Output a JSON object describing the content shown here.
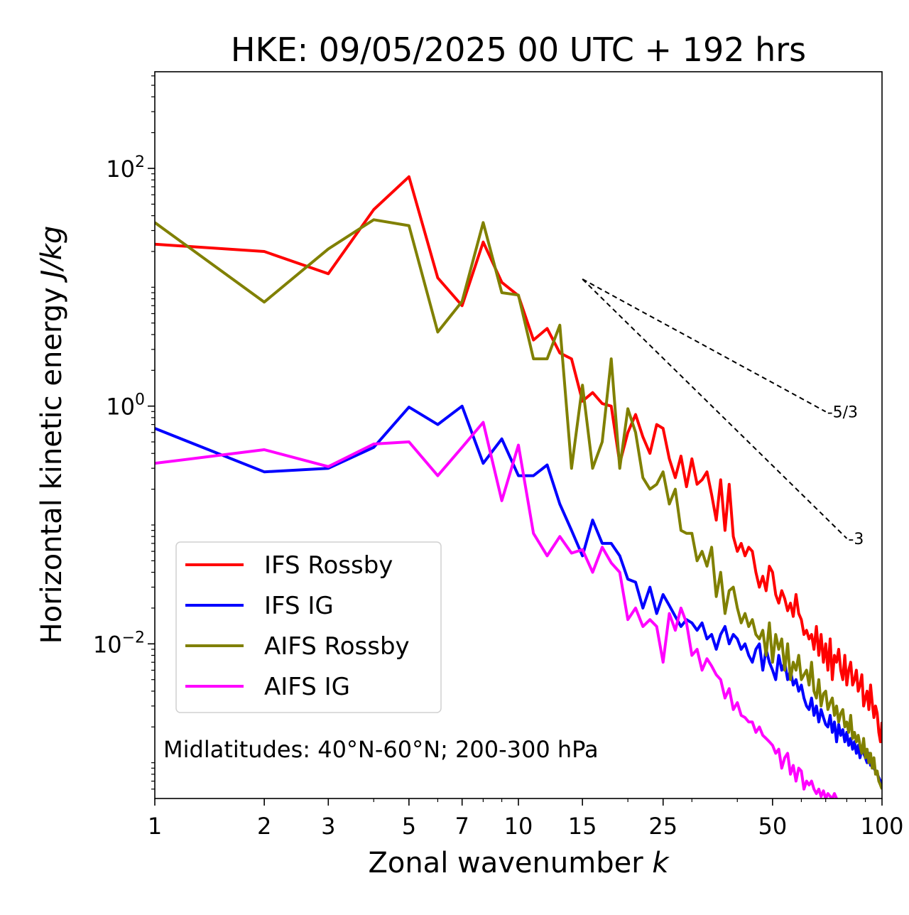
{
  "chart_data": {
    "type": "line",
    "title": "HKE: 09/05/2025 00 UTC + 192 hrs",
    "xlabel": "Zonal wavenumber k",
    "xlabel_main": "Zonal wavenumber ",
    "xlabel_var": "k",
    "ylabel": "Horizontal kinetic energy J/kg",
    "ylabel_main": "Horizontal kinetic energy ",
    "ylabel_unit": "J/kg",
    "xscale": "log",
    "yscale": "log",
    "xlim": [
      1,
      100
    ],
    "ylim": [
      0.0005,
      650
    ],
    "x_ticks": [
      1,
      2,
      3,
      5,
      7,
      10,
      15,
      25,
      50,
      100
    ],
    "x_tick_labels": [
      "1",
      "2",
      "3",
      "5",
      "7",
      "10",
      "15",
      "25",
      "50",
      "100"
    ],
    "y_ticks": [
      {
        "value": 100,
        "base": "10",
        "exp": "2"
      },
      {
        "value": 1,
        "base": "10",
        "exp": "0"
      },
      {
        "value": 0.01,
        "base": "10",
        "exp": "−2"
      }
    ],
    "annotation": "Midlatitudes: 40°N-60°N; 200-300 hPa",
    "legend_position": "lower-left",
    "reference_lines": [
      {
        "label": "-5/3",
        "slope": -1.6667,
        "x0": 15,
        "y0": 11.7,
        "x1": 70
      },
      {
        "label": "-3",
        "slope": -3,
        "x0": 15,
        "y0": 11.7,
        "x1": 80
      }
    ],
    "series": [
      {
        "name": "IFS Rossby",
        "color": "#ff0000",
        "x": [
          1,
          2,
          3,
          4,
          5,
          6,
          7,
          8,
          9,
          10,
          11,
          12,
          13,
          14,
          15,
          16,
          17,
          18,
          19,
          20,
          21,
          22,
          23,
          24,
          25,
          26,
          27,
          28,
          29,
          30,
          31,
          32,
          33,
          34,
          35,
          36,
          37,
          38,
          39,
          40,
          41,
          42,
          43,
          44,
          45,
          46,
          47,
          48,
          49,
          50,
          51,
          52,
          53,
          54,
          55,
          56,
          57,
          58,
          59,
          60,
          61,
          62,
          63,
          64,
          65,
          66,
          67,
          68,
          69,
          70,
          71,
          72,
          73,
          74,
          75,
          76,
          77,
          78,
          79,
          80,
          81,
          82,
          83,
          84,
          85,
          86,
          87,
          88,
          89,
          90,
          91,
          92,
          93,
          94,
          95,
          96,
          97,
          98,
          99,
          100
        ],
        "y": [
          23,
          20,
          13,
          45,
          85,
          12,
          7,
          24,
          11,
          8.5,
          3.6,
          4.5,
          2.8,
          2.5,
          1.1,
          1.3,
          1.05,
          1.0,
          0.33,
          0.6,
          0.85,
          0.55,
          0.4,
          0.7,
          0.65,
          0.36,
          0.25,
          0.38,
          0.21,
          0.36,
          0.22,
          0.24,
          0.28,
          0.18,
          0.11,
          0.24,
          0.09,
          0.22,
          0.08,
          0.06,
          0.07,
          0.055,
          0.065,
          0.06,
          0.04,
          0.03,
          0.037,
          0.028,
          0.045,
          0.04,
          0.026,
          0.022,
          0.028,
          0.024,
          0.019,
          0.022,
          0.017,
          0.026,
          0.018,
          0.016,
          0.012,
          0.013,
          0.011,
          0.012,
          0.009,
          0.014,
          0.008,
          0.012,
          0.007,
          0.01,
          0.006,
          0.011,
          0.005,
          0.008,
          0.007,
          0.009,
          0.006,
          0.005,
          0.008,
          0.0045,
          0.006,
          0.007,
          0.0045,
          0.005,
          0.006,
          0.004,
          0.0045,
          0.0055,
          0.003,
          0.0035,
          0.004,
          0.0028,
          0.0045,
          0.0032,
          0.0024,
          0.003,
          0.0026,
          0.0018,
          0.0015,
          0.0022
        ]
      },
      {
        "name": "IFS IG",
        "color": "#0000ff",
        "x": [
          1,
          2,
          3,
          4,
          5,
          6,
          7,
          8,
          9,
          10,
          11,
          12,
          13,
          14,
          15,
          16,
          17,
          18,
          19,
          20,
          21,
          22,
          23,
          24,
          25,
          26,
          27,
          28,
          29,
          30,
          31,
          32,
          33,
          34,
          35,
          36,
          37,
          38,
          39,
          40,
          41,
          42,
          43,
          44,
          45,
          46,
          47,
          48,
          49,
          50,
          51,
          52,
          53,
          54,
          55,
          56,
          57,
          58,
          59,
          60,
          61,
          62,
          63,
          64,
          65,
          66,
          67,
          68,
          69,
          70,
          71,
          72,
          73,
          74,
          75,
          76,
          77,
          78,
          79,
          80,
          81,
          82,
          83,
          84,
          85,
          86,
          87,
          88,
          89,
          90,
          91,
          92,
          93,
          94,
          95,
          96,
          97,
          98,
          99,
          100
        ],
        "y": [
          0.65,
          0.28,
          0.3,
          0.45,
          0.98,
          0.7,
          1.0,
          0.33,
          0.53,
          0.26,
          0.26,
          0.32,
          0.15,
          0.09,
          0.055,
          0.11,
          0.07,
          0.07,
          0.055,
          0.035,
          0.033,
          0.02,
          0.03,
          0.018,
          0.026,
          0.021,
          0.017,
          0.014,
          0.016,
          0.015,
          0.013,
          0.015,
          0.011,
          0.012,
          0.009,
          0.012,
          0.014,
          0.01,
          0.012,
          0.011,
          0.009,
          0.01,
          0.008,
          0.007,
          0.009,
          0.01,
          0.006,
          0.009,
          0.007,
          0.006,
          0.005,
          0.008,
          0.006,
          0.007,
          0.005,
          0.006,
          0.0045,
          0.005,
          0.004,
          0.0045,
          0.0035,
          0.003,
          0.0028,
          0.0035,
          0.0025,
          0.003,
          0.0022,
          0.0028,
          0.0024,
          0.0021,
          0.002,
          0.0025,
          0.0018,
          0.0022,
          0.0015,
          0.0021,
          0.0017,
          0.0019,
          0.0015,
          0.0018,
          0.0014,
          0.0016,
          0.0013,
          0.0015,
          0.0012,
          0.0014,
          0.0011,
          0.0013,
          0.0012,
          0.0011,
          0.001,
          0.0012,
          0.00095,
          0.001,
          0.0009,
          0.00085,
          0.0008,
          0.00075,
          0.0007,
          0.0006
        ]
      },
      {
        "name": "AIFS Rossby",
        "color": "#808000",
        "x": [
          1,
          2,
          3,
          4,
          5,
          6,
          7,
          8,
          9,
          10,
          11,
          12,
          13,
          14,
          15,
          16,
          17,
          18,
          19,
          20,
          21,
          22,
          23,
          24,
          25,
          26,
          27,
          28,
          29,
          30,
          31,
          32,
          33,
          34,
          35,
          36,
          37,
          38,
          39,
          40,
          41,
          42,
          43,
          44,
          45,
          46,
          47,
          48,
          49,
          50,
          51,
          52,
          53,
          54,
          55,
          56,
          57,
          58,
          59,
          60,
          61,
          62,
          63,
          64,
          65,
          66,
          67,
          68,
          69,
          70,
          71,
          72,
          73,
          74,
          75,
          76,
          77,
          78,
          79,
          80,
          81,
          82,
          83,
          84,
          85,
          86,
          87,
          88,
          89,
          90,
          91,
          92,
          93,
          94,
          95,
          96,
          97,
          98,
          99,
          100
        ],
        "y": [
          35,
          7.5,
          21,
          37,
          33,
          4.2,
          7.6,
          35,
          9.0,
          8.6,
          2.5,
          2.5,
          4.8,
          0.3,
          1.5,
          0.3,
          0.5,
          2.5,
          0.3,
          0.95,
          0.6,
          0.25,
          0.2,
          0.22,
          0.28,
          0.15,
          0.2,
          0.09,
          0.085,
          0.085,
          0.05,
          0.06,
          0.045,
          0.065,
          0.025,
          0.04,
          0.018,
          0.028,
          0.03,
          0.02,
          0.015,
          0.018,
          0.014,
          0.016,
          0.012,
          0.011,
          0.013,
          0.008,
          0.015,
          0.007,
          0.012,
          0.009,
          0.011,
          0.006,
          0.01,
          0.005,
          0.007,
          0.006,
          0.008,
          0.005,
          0.0055,
          0.006,
          0.0045,
          0.007,
          0.004,
          0.0035,
          0.005,
          0.003,
          0.0038,
          0.004,
          0.0028,
          0.0032,
          0.0035,
          0.0025,
          0.003,
          0.0022,
          0.0026,
          0.0028,
          0.002,
          0.0022,
          0.0018,
          0.0025,
          0.0016,
          0.0018,
          0.0015,
          0.0017,
          0.0014,
          0.0012,
          0.0016,
          0.0011,
          0.0013,
          0.001,
          0.0012,
          0.0009,
          0.0011,
          0.0008,
          0.00085,
          0.0007,
          0.00065,
          0.0006
        ]
      },
      {
        "name": "AIFS IG",
        "color": "#ff00ff",
        "x": [
          1,
          2,
          3,
          4,
          5,
          6,
          7,
          8,
          9,
          10,
          11,
          12,
          13,
          14,
          15,
          16,
          17,
          18,
          19,
          20,
          21,
          22,
          23,
          24,
          25,
          26,
          27,
          28,
          29,
          30,
          31,
          32,
          33,
          34,
          35,
          36,
          37,
          38,
          39,
          40,
          41,
          42,
          43,
          44,
          45,
          46,
          47,
          48,
          49,
          50,
          51,
          52,
          53,
          54,
          55,
          56,
          57,
          58,
          59,
          60,
          61,
          62,
          63,
          64,
          65,
          66,
          67,
          68,
          69,
          70,
          71,
          72,
          73,
          74,
          75
        ],
        "y": [
          0.33,
          0.43,
          0.31,
          0.48,
          0.5,
          0.26,
          0.45,
          0.73,
          0.16,
          0.47,
          0.085,
          0.055,
          0.08,
          0.058,
          0.062,
          0.04,
          0.065,
          0.048,
          0.04,
          0.016,
          0.02,
          0.014,
          0.016,
          0.014,
          0.007,
          0.018,
          0.013,
          0.02,
          0.015,
          0.008,
          0.009,
          0.006,
          0.0075,
          0.0065,
          0.0055,
          0.005,
          0.0035,
          0.0042,
          0.0028,
          0.0032,
          0.0025,
          0.0024,
          0.0022,
          0.0022,
          0.0018,
          0.002,
          0.0017,
          0.0016,
          0.0015,
          0.0014,
          0.0012,
          0.0013,
          0.0009,
          0.0011,
          0.0012,
          0.0008,
          0.00095,
          0.0007,
          0.0009,
          0.00085,
          0.0006,
          0.0007,
          0.00065,
          0.0007,
          0.0006,
          0.00055,
          0.0006,
          0.00052,
          0.00058,
          0.0005,
          0.00055,
          0.00052,
          0.0005,
          0.00055,
          0.0005
        ]
      }
    ]
  }
}
